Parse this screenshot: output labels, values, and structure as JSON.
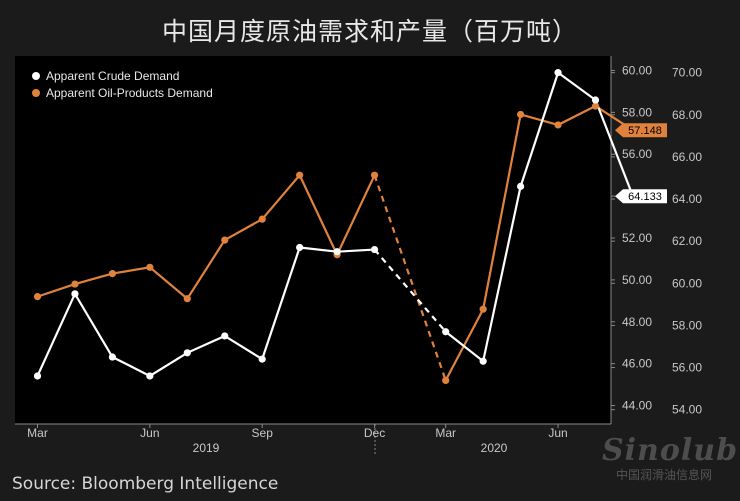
{
  "title": "中国月度原油需求和产量（百万吨）",
  "source": "Source: Bloomberg Intelligence",
  "watermark": {
    "logo": "Sinolub",
    "site": "中国润滑油信息网"
  },
  "colors": {
    "background": "#1b1b1b",
    "plot_bg": "#000000",
    "crude": "#ffffff",
    "products": "#e0823c",
    "axis_text": "#c8c8c8"
  },
  "chart_data": {
    "type": "line",
    "legend_position": "top-left",
    "grid": false,
    "x": [
      "2019-03",
      "2019-04",
      "2019-05",
      "2019-06",
      "2019-07",
      "2019-08",
      "2019-09",
      "2019-10",
      "2019-11",
      "2019-12",
      "2020-03",
      "2020-04",
      "2020-05",
      "2020-06",
      "2020-07",
      "2020-08"
    ],
    "x_tick_labels": [
      "Mar",
      "Jun",
      "Sep",
      "Dec",
      "Mar",
      "Jun"
    ],
    "x_year_labels": [
      "2019",
      "2020"
    ],
    "y_left": {
      "range": [
        43.5,
        60.5
      ],
      "ticks": [
        "44.00",
        "46.00",
        "48.00",
        "50.00",
        "52.00",
        "54.00",
        "56.00",
        "58.00",
        "60.00"
      ]
    },
    "y_right": {
      "range": [
        53.7,
        70.6
      ],
      "ticks": [
        "54.00",
        "56.00",
        "58.00",
        "60.00",
        "62.00",
        "64.00",
        "66.00",
        "68.00",
        "70.00"
      ]
    },
    "gap_between": [
      "2019-12",
      "2020-03"
    ],
    "series": [
      {
        "name": "Apparent Crude Demand",
        "axis": "right",
        "values": [
          55.6,
          59.5,
          56.5,
          55.6,
          56.7,
          57.5,
          56.4,
          61.7,
          61.5,
          61.6,
          57.7,
          56.3,
          64.6,
          70.0,
          68.7,
          64.133
        ],
        "last_label": "64.133"
      },
      {
        "name": "Apparent Oil-Products Demand",
        "axis": "left",
        "values": [
          49.2,
          49.8,
          50.3,
          50.6,
          49.1,
          51.9,
          52.9,
          55.0,
          51.2,
          55.0,
          45.2,
          48.6,
          57.9,
          57.4,
          58.3,
          57.148
        ],
        "last_label": "57.148"
      }
    ]
  }
}
